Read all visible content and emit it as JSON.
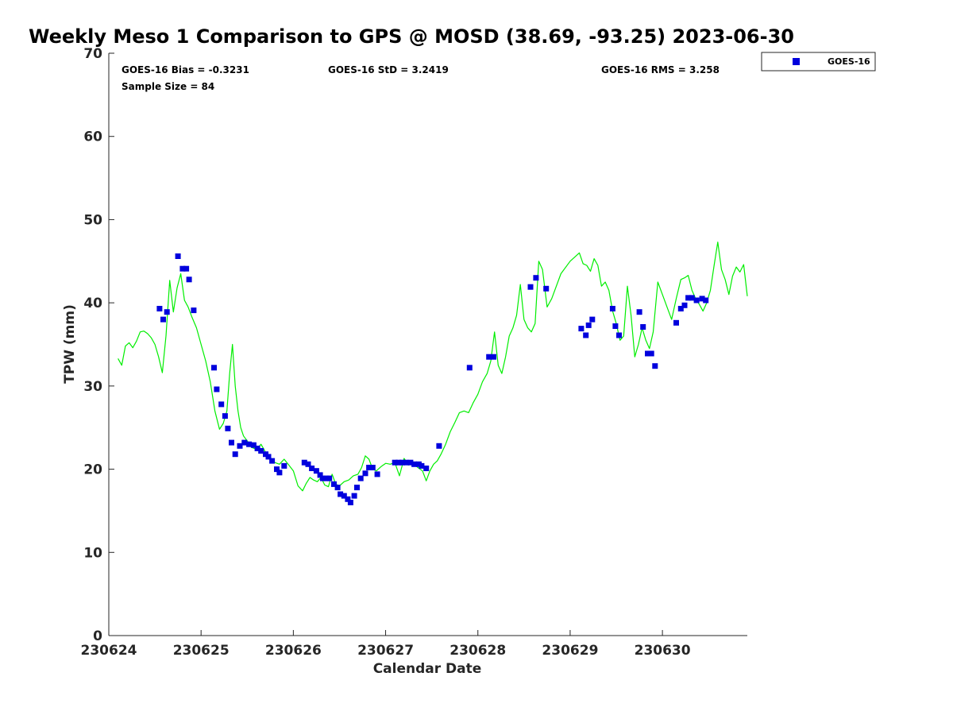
{
  "chart_data": {
    "type": "scatter",
    "title": "Weekly Meso 1 Comparison to GPS @ MOSD (38.69, -93.25) 2023-06-30",
    "xlabel": "Calendar Date",
    "ylabel": "TPW (mm)",
    "xlim": [
      230624,
      230630.92
    ],
    "ylim": [
      0,
      70
    ],
    "x_tick_labels": [
      "230624",
      "230625",
      "230626",
      "230627",
      "230628",
      "230629",
      "230630"
    ],
    "x_tick_values": [
      230624,
      230625,
      230626,
      230627,
      230628,
      230629,
      230630
    ],
    "y_tick_values": [
      0,
      10,
      20,
      30,
      40,
      50,
      60,
      70
    ],
    "grid": false,
    "legend": {
      "placement": "top-right outside",
      "entries": [
        "GOES-16"
      ]
    },
    "annotations": {
      "bias": "GOES-16 Bias = -0.3231",
      "std": "GOES-16 StD = 3.2419",
      "rms": "GOES-16 RMS = 3.258",
      "sample": "Sample Size = 84"
    },
    "series": [
      {
        "name": "GOES-16",
        "marker": "square",
        "color": "#0000dd",
        "x": [
          230624.55,
          230624.59,
          230624.63,
          230624.75,
          230624.8,
          230624.84,
          230624.87,
          230624.92,
          230625.14,
          230625.17,
          230625.22,
          230625.26,
          230625.29,
          230625.33,
          230625.37,
          230625.42,
          230625.47,
          230625.52,
          230625.57,
          230625.61,
          230625.65,
          230625.7,
          230625.73,
          230625.77,
          230625.82,
          230625.85,
          230625.9,
          230626.12,
          230626.16,
          230626.2,
          230626.25,
          230626.29,
          230626.32,
          230626.36,
          230626.39,
          230626.44,
          230626.48,
          230626.51,
          230626.55,
          230626.59,
          230626.62,
          230626.66,
          230626.69,
          230626.73,
          230626.78,
          230626.82,
          230626.86,
          230626.91,
          230627.1,
          230627.14,
          230627.18,
          230627.22,
          230627.27,
          230627.31,
          230627.36,
          230627.39,
          230627.44,
          230627.58,
          230627.91,
          230628.12,
          230628.17,
          230628.57,
          230628.63,
          230628.74,
          230629.12,
          230629.17,
          230629.2,
          230629.24,
          230629.46,
          230629.49,
          230629.53,
          230629.75,
          230629.79,
          230629.84,
          230629.88,
          230629.92,
          230630.15,
          230630.2,
          230630.24,
          230630.28,
          230630.32,
          230630.37,
          230630.43,
          230630.47
        ],
        "y": [
          39.3,
          38.0,
          38.9,
          45.6,
          44.1,
          44.1,
          42.8,
          39.1,
          32.2,
          29.6,
          27.8,
          26.4,
          24.9,
          23.2,
          21.8,
          22.8,
          23.2,
          23.0,
          22.9,
          22.5,
          22.2,
          21.8,
          21.5,
          21.0,
          20.0,
          19.6,
          20.4,
          20.8,
          20.6,
          20.1,
          19.8,
          19.3,
          18.9,
          18.9,
          18.9,
          18.2,
          17.8,
          17.0,
          16.8,
          16.4,
          16.0,
          16.8,
          17.8,
          18.9,
          19.5,
          20.2,
          20.2,
          19.4,
          20.8,
          20.8,
          20.8,
          20.8,
          20.8,
          20.6,
          20.6,
          20.4,
          20.1,
          22.8,
          32.2,
          33.5,
          33.5,
          41.9,
          43.0,
          41.7,
          36.9,
          36.1,
          37.3,
          38.0,
          39.3,
          37.2,
          36.1,
          38.9,
          37.1,
          33.9,
          33.9,
          32.4,
          37.6,
          39.3,
          39.7,
          40.6,
          40.6,
          40.3,
          40.5,
          40.3
        ]
      },
      {
        "name": "GPS",
        "marker": "line",
        "color": "#00ee00",
        "x": [
          230624.1,
          230624.14,
          230624.18,
          230624.22,
          230624.26,
          230624.3,
          230624.34,
          230624.38,
          230624.42,
          230624.46,
          230624.5,
          230624.54,
          230624.58,
          230624.62,
          230624.66,
          230624.7,
          230624.74,
          230624.78,
          230624.82,
          230624.86,
          230624.9,
          230624.95,
          230625.0,
          230625.05,
          230625.1,
          230625.15,
          230625.2,
          230625.24,
          230625.28,
          230625.31,
          230625.34,
          230625.37,
          230625.4,
          230625.43,
          230625.46,
          230625.5,
          230625.55,
          230625.6,
          230625.65,
          230625.7,
          230625.75,
          230625.8,
          230625.85,
          230625.9,
          230625.95,
          230626.0,
          230626.05,
          230626.1,
          230626.14,
          230626.18,
          230626.22,
          230626.26,
          230626.3,
          230626.34,
          230626.38,
          230626.42,
          230626.46,
          230626.5,
          230626.55,
          230626.6,
          230626.65,
          230626.7,
          230626.74,
          230626.78,
          230626.82,
          230626.86,
          230626.9,
          230626.95,
          230627.0,
          230627.05,
          230627.1,
          230627.15,
          230627.2,
          230627.25,
          230627.3,
          230627.35,
          230627.4,
          230627.44,
          230627.48,
          230627.52,
          230627.56,
          230627.6,
          230627.65,
          230627.7,
          230627.75,
          230627.8,
          230627.85,
          230627.9,
          230627.95,
          230628.0,
          230628.05,
          230628.1,
          230628.14,
          230628.18,
          230628.22,
          230628.26,
          230628.3,
          230628.34,
          230628.38,
          230628.42,
          230628.46,
          230628.5,
          230628.54,
          230628.58,
          230628.62,
          230628.66,
          230628.7,
          230628.75,
          230628.8,
          230628.9,
          230629.0,
          230629.1,
          230629.14,
          230629.18,
          230629.22,
          230629.26,
          230629.3,
          230629.34,
          230629.38,
          230629.42,
          230629.46,
          230629.5,
          230629.54,
          230629.58,
          230629.62,
          230629.66,
          230629.7,
          230629.74,
          230629.78,
          230629.82,
          230629.86,
          230629.9,
          230629.95,
          230630.0,
          230630.05,
          230630.1,
          230630.15,
          230630.2,
          230630.24,
          230630.28,
          230630.32,
          230630.36,
          230630.4,
          230630.44,
          230630.48,
          230630.52,
          230630.56,
          230630.6,
          230630.64,
          230630.68,
          230630.72,
          230630.76,
          230630.8,
          230630.84,
          230630.88,
          230630.92
        ],
        "y": [
          33.3,
          32.5,
          34.8,
          35.2,
          34.6,
          35.4,
          36.5,
          36.6,
          36.3,
          35.8,
          35.0,
          33.5,
          31.6,
          36.0,
          42.7,
          38.9,
          41.8,
          43.5,
          40.3,
          39.5,
          38.3,
          37.0,
          35.0,
          33.0,
          30.5,
          27.0,
          24.8,
          25.5,
          27.0,
          31.5,
          35.0,
          30.0,
          27.0,
          25.0,
          24.0,
          23.4,
          22.6,
          22.4,
          23.0,
          22.0,
          21.4,
          20.8,
          20.6,
          21.2,
          20.5,
          19.8,
          18.0,
          17.4,
          18.3,
          19.0,
          18.7,
          18.5,
          19.0,
          18.1,
          17.9,
          19.4,
          18.2,
          18.0,
          18.5,
          18.7,
          19.2,
          19.4,
          20.2,
          21.6,
          21.2,
          20.0,
          19.8,
          20.3,
          20.7,
          20.6,
          20.8,
          19.2,
          21.3,
          20.5,
          20.7,
          20.2,
          19.8,
          18.6,
          19.8,
          20.6,
          21.0,
          21.8,
          23.0,
          24.5,
          25.6,
          26.8,
          27.0,
          26.8,
          28.0,
          29.0,
          30.5,
          31.5,
          33.0,
          36.5,
          32.5,
          31.5,
          33.5,
          36.0,
          37.0,
          38.5,
          42.2,
          38.0,
          37.0,
          36.5,
          37.5,
          45.0,
          44.0,
          39.5,
          40.5,
          43.5,
          45.0,
          46.0,
          44.7,
          44.5,
          43.8,
          45.3,
          44.5,
          42.0,
          42.5,
          41.5,
          39.0,
          37.5,
          35.5,
          36.0,
          42.0,
          38.5,
          33.5,
          35.0,
          37.0,
          35.5,
          34.5,
          36.5,
          42.5,
          41.0,
          39.5,
          38.0,
          40.5,
          42.8,
          43.0,
          43.3,
          41.5,
          40.5,
          39.8,
          39.0,
          40.0,
          41.5,
          44.5,
          47.3,
          44.0,
          42.8,
          41.0,
          43.2,
          44.3,
          43.7,
          44.6,
          40.8
        ]
      }
    ]
  }
}
